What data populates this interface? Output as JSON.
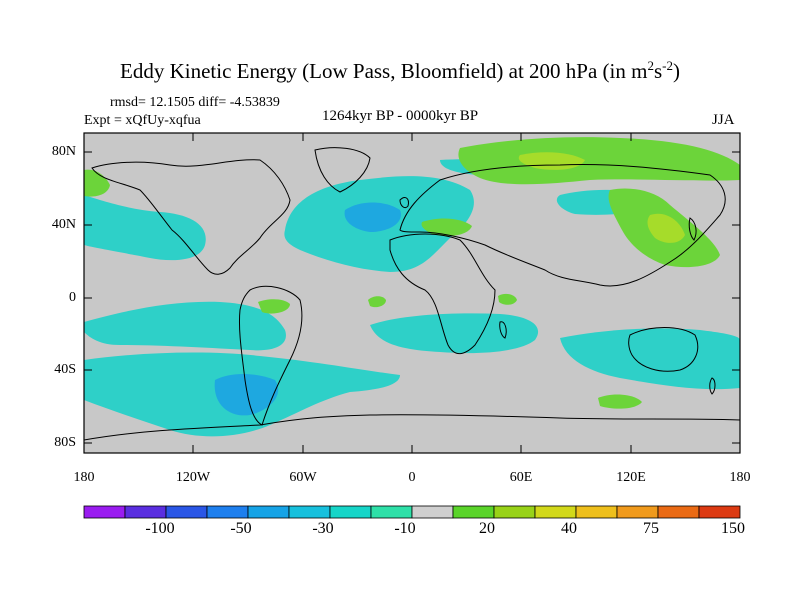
{
  "title": "Eddy Kinetic Energy (Low Pass, Bloomfield) at 200 hPa (in m",
  "title_unit_sup1": "2",
  "title_unit_s": "s",
  "title_unit_sup2": "-2",
  "title_close": ")",
  "stats": "rmsd= 12.1505 diff= -4.53839",
  "expt": "Expt = xQfUy-xqfua",
  "period": "1264kyr BP - 0000kyr BP",
  "season": "JJA",
  "lat_labels": [
    "80N",
    "40N",
    "0",
    "40S",
    "80S"
  ],
  "lon_labels": [
    "180",
    "120W",
    "60W",
    "0",
    "60E",
    "120E",
    "180"
  ],
  "colorbar": {
    "labels": [
      "-100",
      "-50",
      "-30",
      "-10",
      "20",
      "40",
      "75",
      "150"
    ],
    "colors": [
      "#9a1cf0",
      "#5a2ee0",
      "#2a56e6",
      "#1e7fee",
      "#16a3e6",
      "#17c0dd",
      "#16d5c8",
      "#2ee0a8",
      "#cfcfcf",
      "#5ad42a",
      "#98d218",
      "#d2d81a",
      "#eebf1c",
      "#f09a1c",
      "#ea6a14",
      "#dc3a12"
    ]
  },
  "colors": {
    "negative": "#2ed0c8",
    "negative_strong": "#1ea8e0",
    "positive": "#6cd43a",
    "positive_weak": "#a6dc2a",
    "land": "#c8c8c8"
  }
}
